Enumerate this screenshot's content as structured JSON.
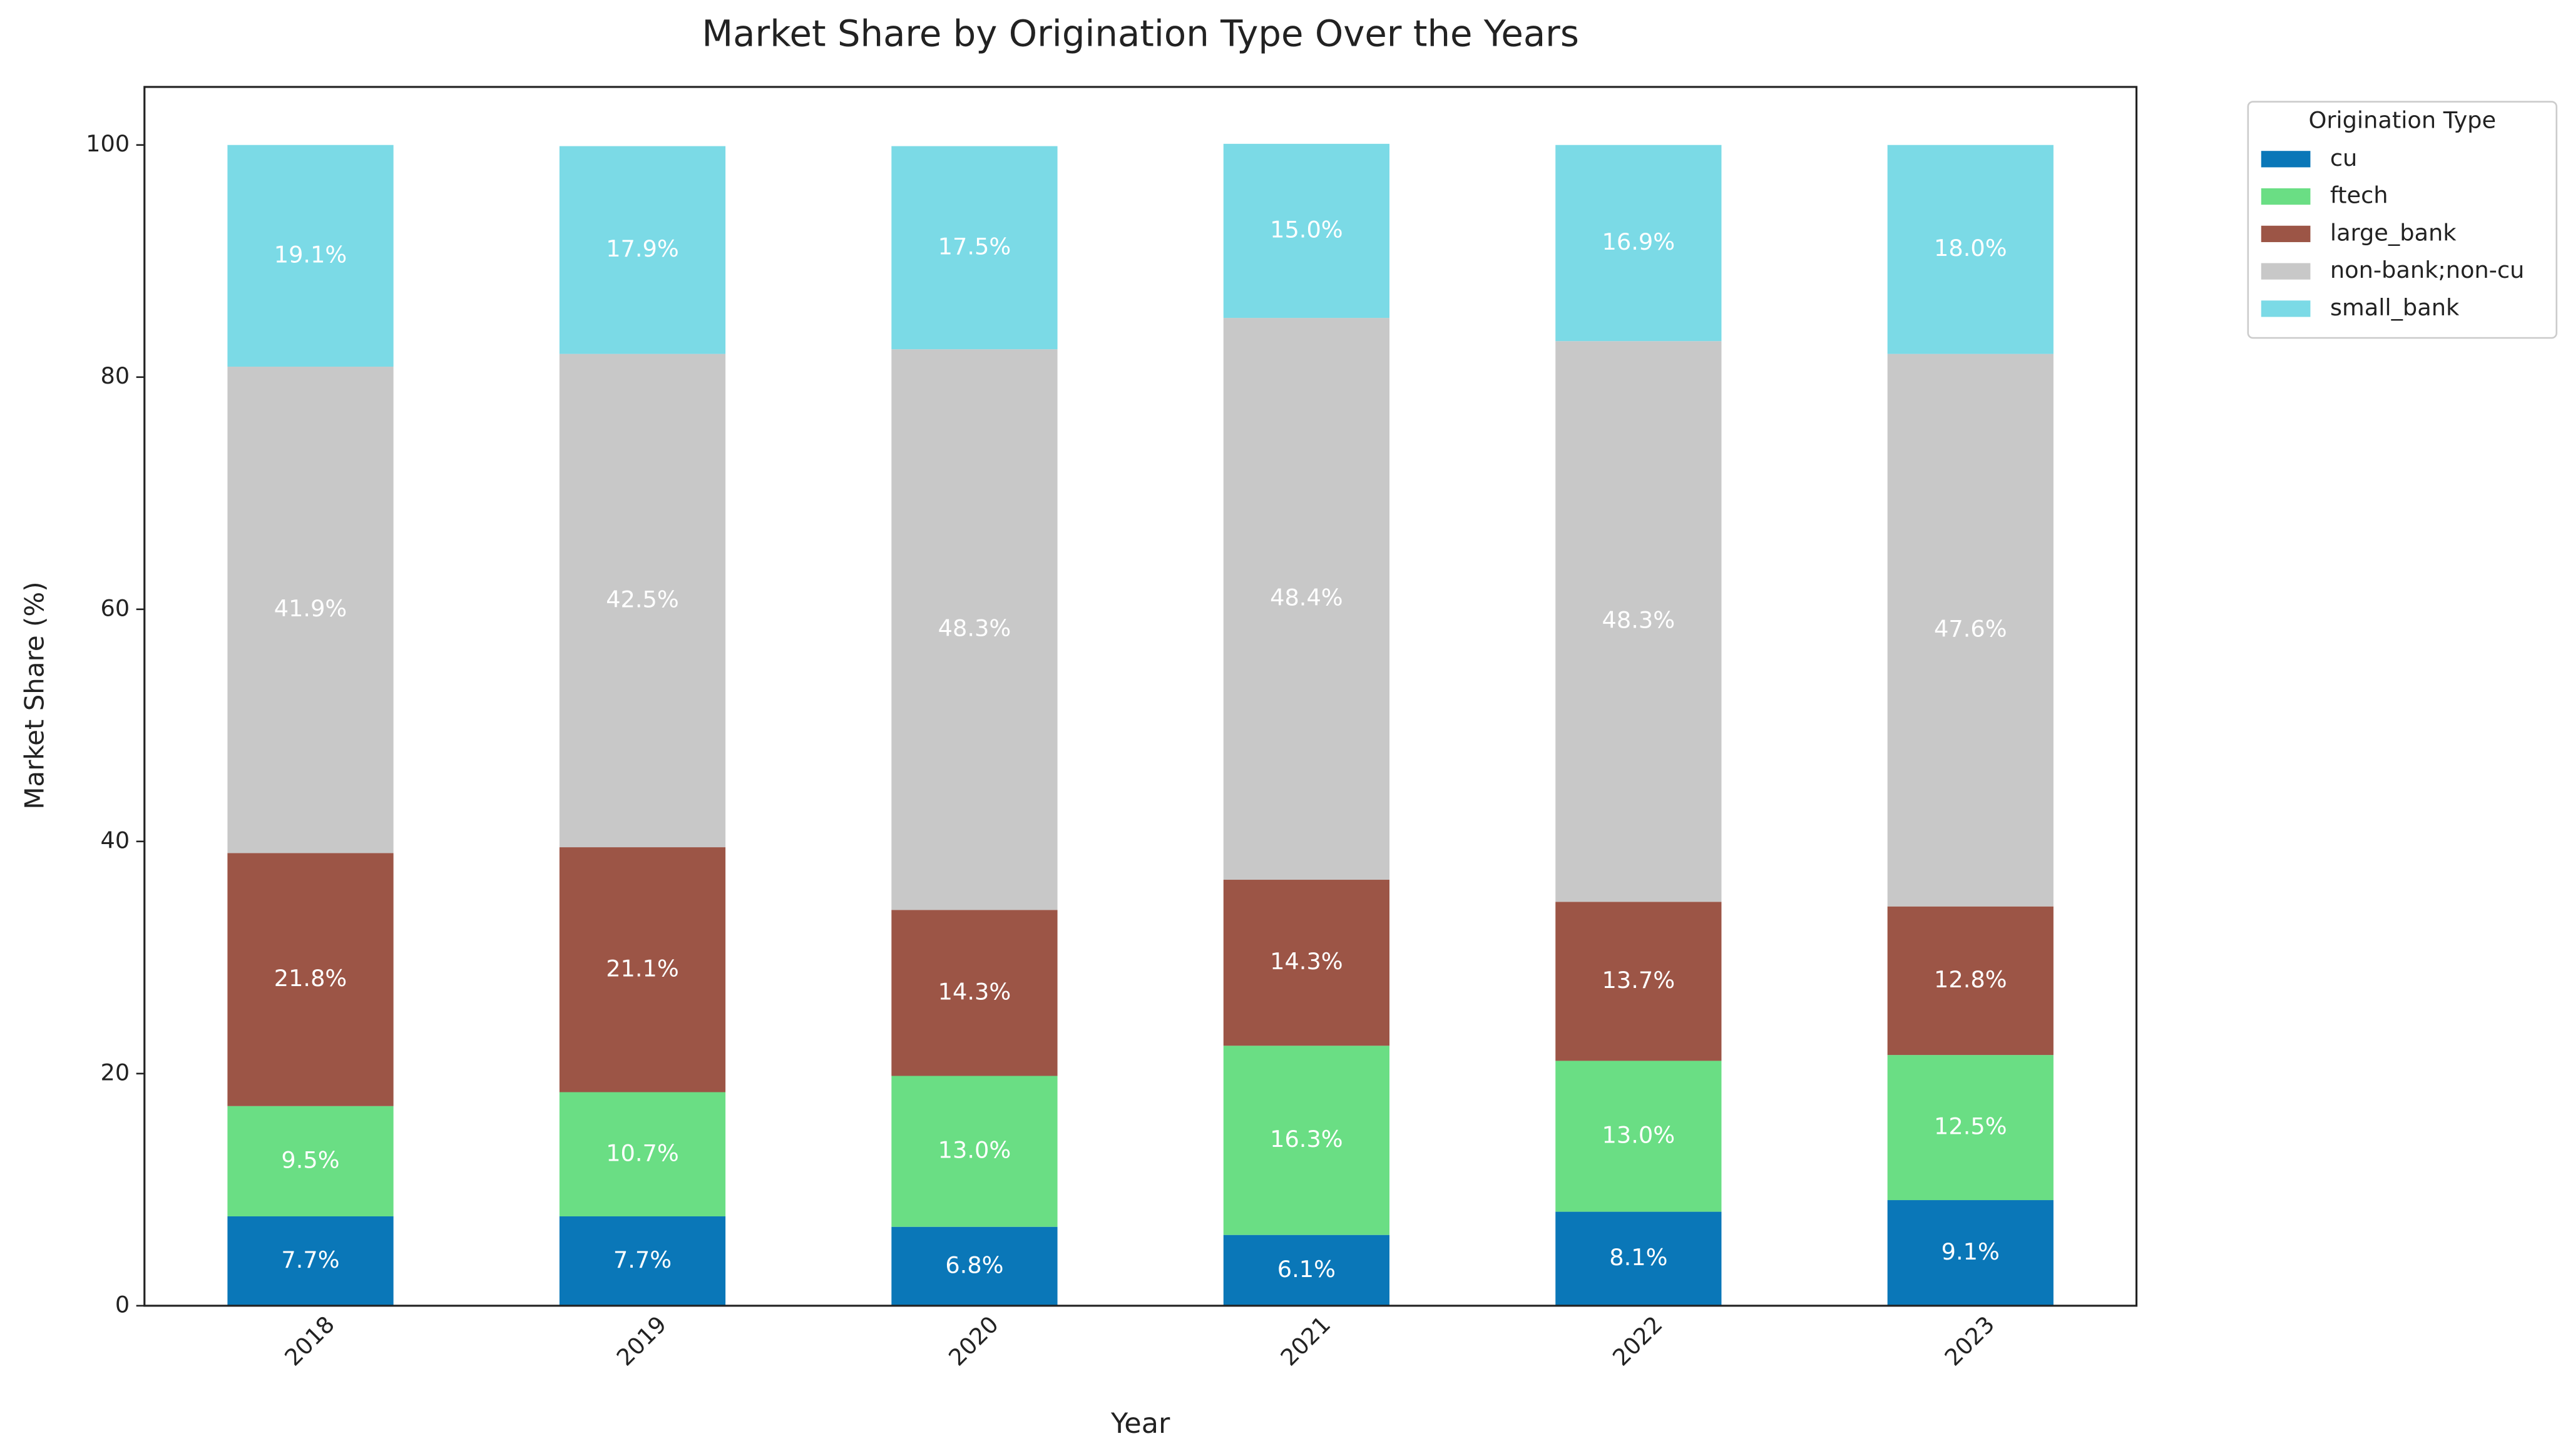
{
  "chart_data": {
    "type": "stacked_bar",
    "title": "Market Share by Origination Type Over the Years",
    "x_label": "Year",
    "y_label": "Market Share (%)",
    "categories": [
      "2018",
      "2019",
      "2020",
      "2021",
      "2022",
      "2023"
    ],
    "series": [
      {
        "name": "cu",
        "color": "#0a77b8",
        "values": [
          7.7,
          7.7,
          6.8,
          6.1,
          8.1,
          9.1
        ],
        "value_labels": [
          "7.7%",
          "7.7%",
          "6.8%",
          "6.1%",
          "8.1%",
          "9.1%"
        ]
      },
      {
        "name": "ftech",
        "color": "#6ade84",
        "values": [
          9.5,
          10.7,
          13.0,
          16.3,
          13.0,
          12.5
        ],
        "value_labels": [
          "9.5%",
          "10.7%",
          "13.0%",
          "16.3%",
          "13.0%",
          "12.5%"
        ]
      },
      {
        "name": "large_bank",
        "color": "#9c5546",
        "values": [
          21.8,
          21.1,
          14.3,
          14.3,
          13.7,
          12.8
        ],
        "value_labels": [
          "21.8%",
          "21.1%",
          "14.3%",
          "14.3%",
          "13.7%",
          "12.8%"
        ]
      },
      {
        "name": "non-bank;non-cu",
        "color": "#c8c8c8",
        "values": [
          41.9,
          42.5,
          48.3,
          48.4,
          48.3,
          47.6
        ],
        "value_labels": [
          "41.9%",
          "42.5%",
          "48.3%",
          "48.4%",
          "48.3%",
          "47.6%"
        ]
      },
      {
        "name": "small_bank",
        "color": "#7bdae6",
        "values": [
          19.1,
          17.9,
          17.5,
          15.0,
          16.9,
          18.0
        ],
        "value_labels": [
          "19.1%",
          "17.9%",
          "17.5%",
          "15.0%",
          "16.9%",
          "18.0%"
        ]
      }
    ],
    "ylim": [
      0,
      105
    ],
    "yticks": [
      0,
      20,
      40,
      60,
      80,
      100
    ],
    "legend_title": "Origination Type",
    "legend": "outside-upper-right"
  }
}
